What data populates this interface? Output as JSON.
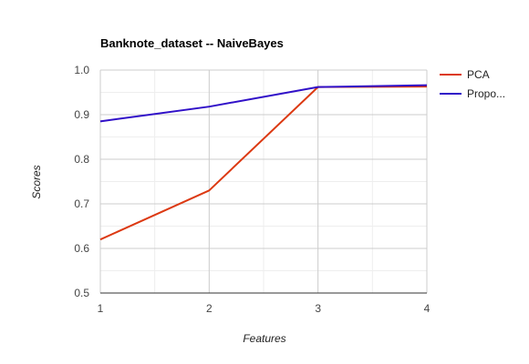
{
  "chart_data": {
    "type": "line",
    "title": "Banknote_dataset -- NaiveBayes",
    "xlabel": "Features",
    "ylabel": "Scores",
    "x": [
      1,
      2,
      3,
      4
    ],
    "x_ticks": [
      "1",
      "2",
      "3",
      "4"
    ],
    "xlim": [
      1,
      4
    ],
    "ylim": [
      0.5,
      1.0
    ],
    "y_ticks": [
      "0.5",
      "0.6",
      "0.7",
      "0.8",
      "0.9",
      "1.0"
    ],
    "grid": true,
    "legend_position": "right",
    "series": [
      {
        "name": "PCA",
        "color": "#dc3912",
        "values": [
          0.62,
          0.73,
          0.962,
          0.963
        ]
      },
      {
        "name": "Propo...",
        "color": "#3010c8",
        "values": [
          0.885,
          0.918,
          0.962,
          0.966
        ]
      }
    ]
  }
}
